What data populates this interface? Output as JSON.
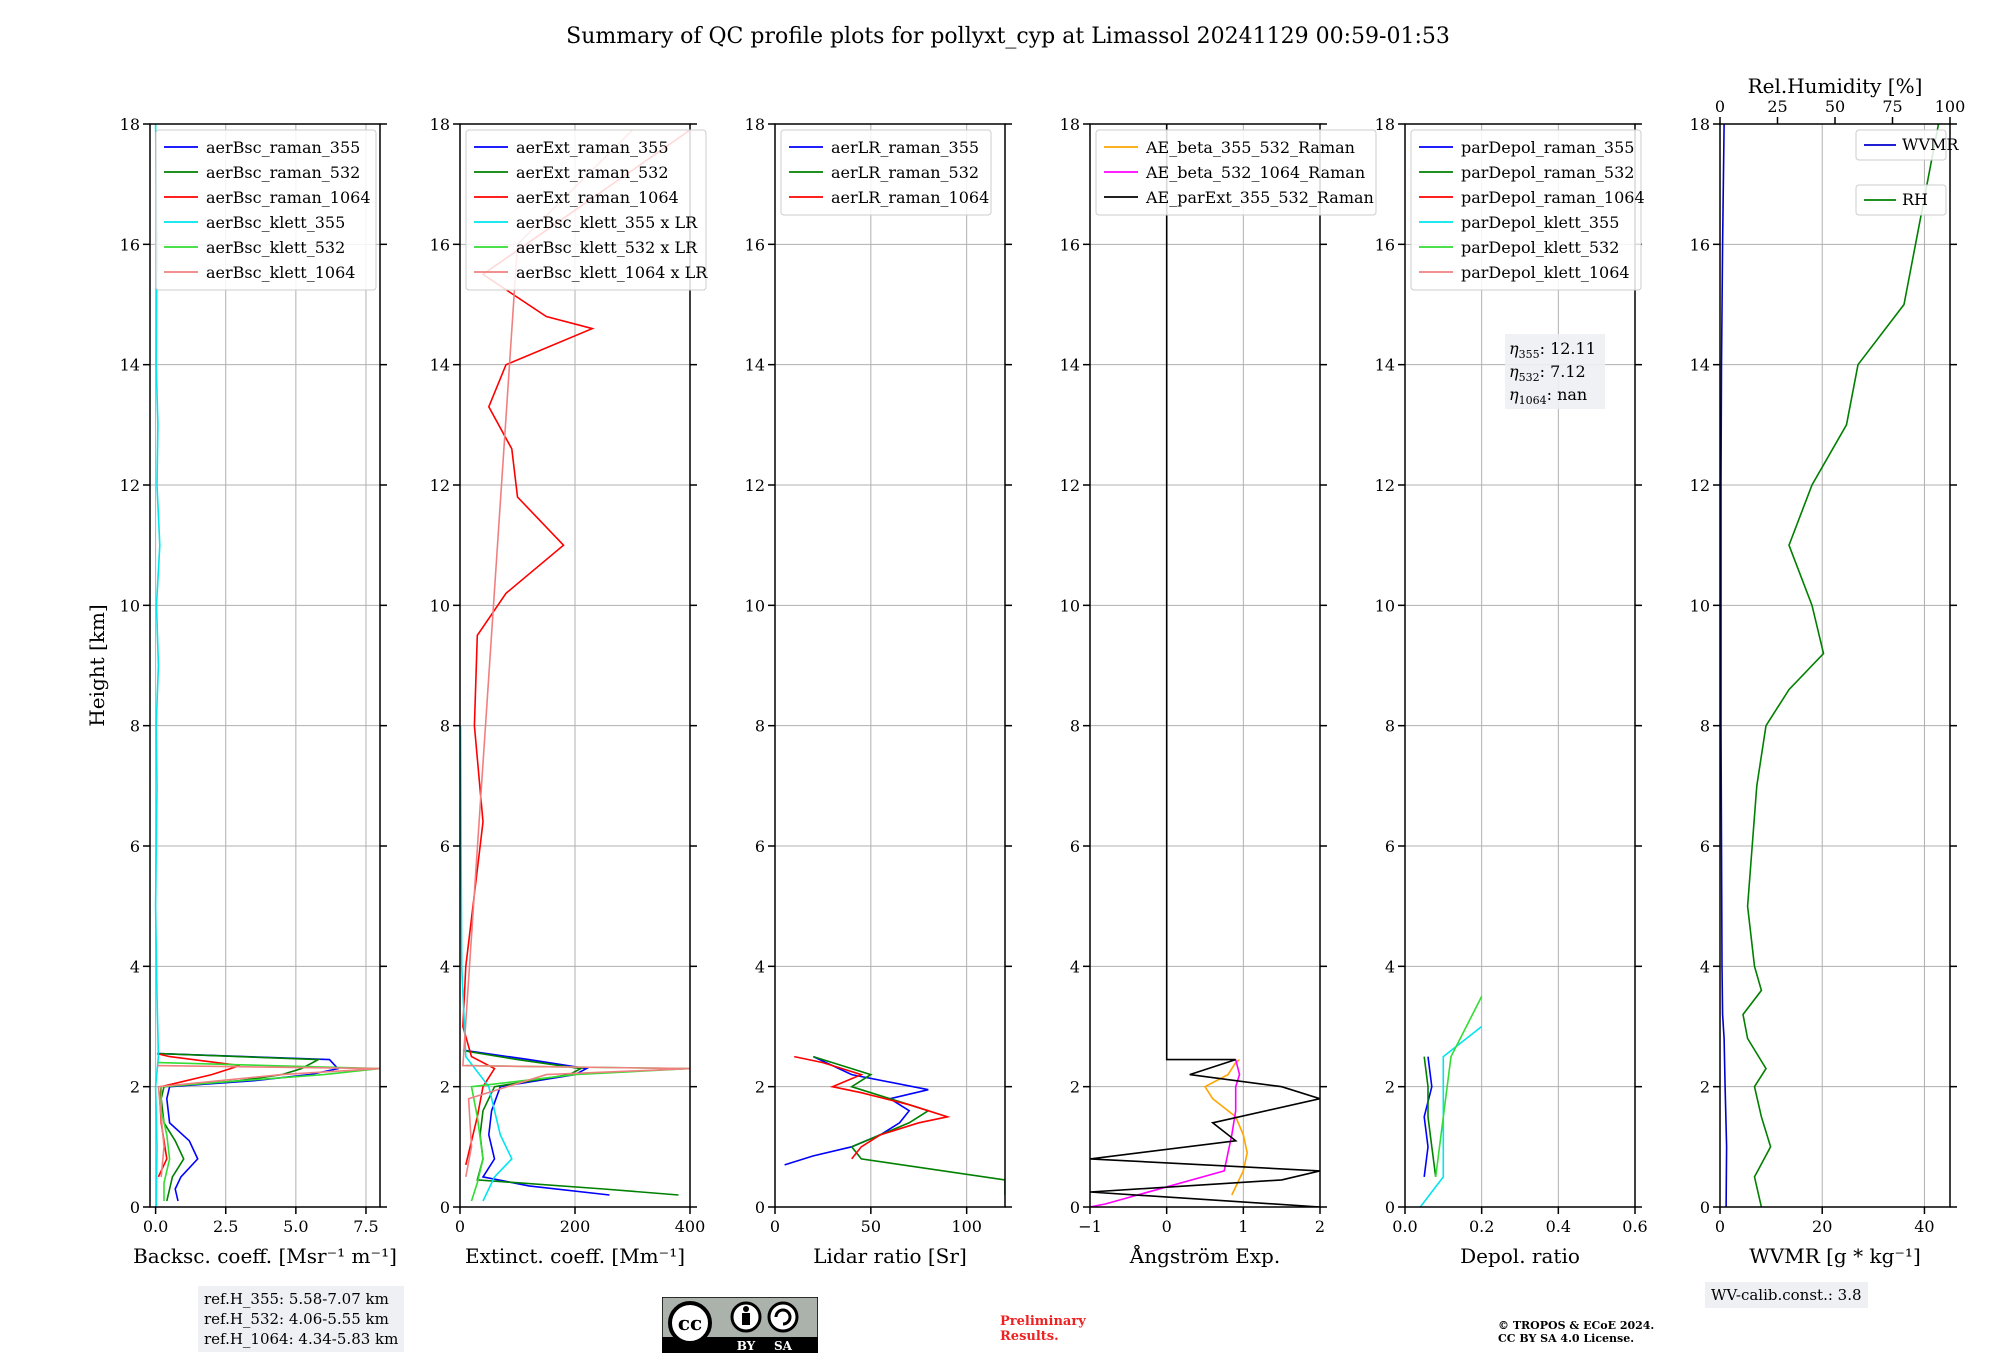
{
  "title": "Summary of QC profile plots for pollyxt_cyp at Limassol 20241129 00:59-01:53",
  "chart_data": [
    {
      "type": "line",
      "xlabel": "Backsc. coeff. [Msr⁻¹ m⁻¹]",
      "ylabel": "Height [km]",
      "xlim": [
        -0.2,
        8
      ],
      "ylim": [
        0,
        18
      ],
      "xticks": [
        0,
        2.5,
        5,
        7.5
      ],
      "xticklabels": [
        "0.0",
        "2.5",
        "5.0",
        "7.5"
      ],
      "yticks": [
        0,
        2,
        4,
        6,
        8,
        10,
        12,
        14,
        16,
        18
      ],
      "grid": true,
      "legend": "top",
      "series": [
        {
          "name": "aerBsc_raman_355",
          "color": "#0000ff",
          "y": [
            0.1,
            0.3,
            0.5,
            0.8,
            1.1,
            1.4,
            1.8,
            2.0,
            2.1,
            2.2,
            2.3,
            2.45,
            2.55
          ],
          "x": [
            0.8,
            0.7,
            0.9,
            1.5,
            1.2,
            0.5,
            0.4,
            0.5,
            3.5,
            5.5,
            6.5,
            6.2,
            0.1
          ]
        },
        {
          "name": "aerBsc_raman_532",
          "color": "#008000",
          "y": [
            0.1,
            0.3,
            0.5,
            0.8,
            1.1,
            1.4,
            1.8,
            2.0,
            2.1,
            2.2,
            2.3,
            2.45,
            2.55
          ],
          "x": [
            0.4,
            0.5,
            0.6,
            1.0,
            0.7,
            0.3,
            0.2,
            0.3,
            3.0,
            4.5,
            5.2,
            5.8,
            0.1
          ]
        },
        {
          "name": "aerBsc_raman_1064",
          "color": "#ff0000",
          "y": [
            0.5,
            0.8,
            1.1,
            1.4,
            1.8,
            2.0,
            2.2,
            2.35,
            2.5,
            2.55
          ],
          "x": [
            0.1,
            0.4,
            0.3,
            0.2,
            0.15,
            0.2,
            2.0,
            3.0,
            0.5,
            0.05
          ]
        },
        {
          "name": "aerBsc_klett_355",
          "color": "#00e5ee",
          "y": [
            0,
            1,
            2,
            2.5,
            3.5,
            5,
            7,
            8,
            9,
            10,
            11,
            12,
            13,
            14,
            16,
            18
          ],
          "x": [
            0.02,
            0.05,
            0.0,
            0.1,
            0.05,
            0.0,
            0.05,
            0.02,
            0.1,
            0.03,
            0.15,
            0.05,
            0.08,
            0.02,
            0.05,
            0.0
          ]
        },
        {
          "name": "aerBsc_klett_532",
          "color": "#33dd33",
          "y": [
            0.1,
            0.4,
            0.8,
            1.2,
            1.6,
            2.0,
            2.2,
            2.3,
            2.4
          ],
          "x": [
            0.3,
            0.3,
            0.5,
            0.4,
            0.2,
            0.2,
            6.0,
            8.0,
            0.1
          ]
        },
        {
          "name": "aerBsc_klett_1064",
          "color": "#f08080",
          "y": [
            0.5,
            1.0,
            1.5,
            2.0,
            2.2,
            2.3,
            2.35
          ],
          "x": [
            0.2,
            0.3,
            0.2,
            0.1,
            4.5,
            8.0,
            0.05
          ]
        }
      ],
      "info": [
        "ref.H_355: 5.58-7.07 km",
        "ref.H_532: 4.06-5.55 km",
        "ref.H_1064: 4.34-5.83 km"
      ]
    },
    {
      "type": "line",
      "xlabel": "Extinct. coeff. [Mm⁻¹]",
      "xlim": [
        0,
        400
      ],
      "ylim": [
        0,
        18
      ],
      "xticks": [
        0,
        200,
        400
      ],
      "xticklabels": [
        "0",
        "200",
        "400"
      ],
      "yticks": [
        0,
        2,
        4,
        6,
        8,
        10,
        12,
        14,
        16,
        18
      ],
      "grid": true,
      "legend": "top",
      "series": [
        {
          "name": "aerExt_raman_355",
          "color": "#0000ff",
          "y": [
            0.2,
            0.35,
            0.5,
            0.8,
            1.2,
            1.6,
            2.0,
            2.2,
            2.3,
            2.45,
            2.6
          ],
          "x": [
            260,
            120,
            40,
            60,
            50,
            55,
            70,
            200,
            220,
            120,
            10
          ]
        },
        {
          "name": "aerExt_raman_532",
          "color": "#008000",
          "y": [
            0.2,
            0.3,
            0.45,
            0.8,
            1.2,
            1.6,
            2.0,
            2.2,
            2.3,
            2.45,
            2.6
          ],
          "x": [
            380,
            250,
            30,
            40,
            35,
            40,
            60,
            190,
            210,
            100,
            5
          ]
        },
        {
          "name": "aerExt_raman_1064",
          "color": "#ff0000",
          "y": [
            0.7,
            1.5,
            2.0,
            2.3,
            2.5,
            3.0,
            4.0,
            6.4,
            8.0,
            9.5,
            10.2,
            11.0,
            11.8,
            12.6,
            13.3,
            14.0,
            14.6,
            14.8,
            15.5,
            17.9
          ],
          "x": [
            10,
            30,
            40,
            60,
            20,
            5,
            10,
            40,
            25,
            30,
            80,
            180,
            100,
            90,
            50,
            80,
            230,
            150,
            40,
            400
          ]
        },
        {
          "name": "aerBsc_klett_355 x LR",
          "color": "#00e5ee",
          "y": [
            0.1,
            0.5,
            0.8,
            1.2,
            2.0,
            2.5,
            4,
            6,
            8
          ],
          "x": [
            40,
            60,
            90,
            70,
            50,
            10,
            3,
            2,
            1
          ]
        },
        {
          "name": "aerBsc_klett_532 x LR",
          "color": "#33dd33",
          "y": [
            0.1,
            0.4,
            0.8,
            1.5,
            2.0,
            2.2,
            2.3,
            2.35
          ],
          "x": [
            20,
            30,
            40,
            30,
            20,
            200,
            400,
            10
          ]
        },
        {
          "name": "aerBsc_klett_1064 x LR",
          "color": "#f08080",
          "y": [
            0.5,
            1.0,
            1.8,
            2.2,
            2.3,
            2.35,
            16.0,
            17.9
          ],
          "x": [
            10,
            20,
            15,
            150,
            400,
            5,
            100,
            300
          ]
        }
      ]
    },
    {
      "type": "line",
      "xlabel": "Lidar ratio [Sr]",
      "xlim": [
        0,
        120
      ],
      "ylim": [
        0,
        18
      ],
      "xticks": [
        0,
        50,
        100
      ],
      "xticklabels": [
        "0",
        "50",
        "100"
      ],
      "yticks": [
        0,
        2,
        4,
        6,
        8,
        10,
        12,
        14,
        16,
        18
      ],
      "grid": true,
      "legend": "top",
      "series": [
        {
          "name": "aerLR_raman_355",
          "color": "#0000ff",
          "y": [
            0.7,
            0.85,
            1.0,
            1.2,
            1.4,
            1.6,
            1.8,
            1.95,
            2.2,
            2.5
          ],
          "x": [
            5,
            20,
            40,
            55,
            65,
            70,
            60,
            80,
            40,
            20
          ]
        },
        {
          "name": "aerLR_raman_532",
          "color": "#008000",
          "y": [
            0.2,
            0.45,
            0.8,
            1.0,
            1.2,
            1.4,
            1.6,
            1.8,
            2.0,
            2.2,
            2.5
          ],
          "x": [
            120,
            120,
            45,
            40,
            55,
            70,
            80,
            60,
            40,
            50,
            20
          ]
        },
        {
          "name": "aerLR_raman_1064",
          "color": "#ff0000",
          "y": [
            0.8,
            1.0,
            1.2,
            1.4,
            1.5,
            1.7,
            1.9,
            2.0,
            2.2,
            2.4,
            2.5
          ],
          "x": [
            40,
            45,
            55,
            75,
            90,
            70,
            45,
            30,
            45,
            25,
            10
          ]
        }
      ]
    },
    {
      "type": "line",
      "xlabel": "Ångström Exp.",
      "xlim": [
        -1,
        2
      ],
      "ylim": [
        0,
        18
      ],
      "xticks": [
        -1,
        0,
        1,
        2
      ],
      "xticklabels": [
        "−1",
        "0",
        "1",
        "2"
      ],
      "yticks": [
        0,
        2,
        4,
        6,
        8,
        10,
        12,
        14,
        16,
        18
      ],
      "grid": true,
      "legend": "top",
      "series": [
        {
          "name": "AE_beta_355_532_Raman",
          "color": "#ffa500",
          "y": [
            0.2,
            0.6,
            0.9,
            1.2,
            1.5,
            1.8,
            2.0,
            2.2,
            2.4,
            2.45
          ],
          "x": [
            0.85,
            1.0,
            1.05,
            1.0,
            0.9,
            0.6,
            0.5,
            0.8,
            0.9,
            0.95
          ]
        },
        {
          "name": "AE_beta_532_1064_Raman",
          "color": "#ff00ff",
          "y": [
            0,
            0.05,
            0.6,
            0.9,
            1.2,
            1.6,
            2.0,
            2.2,
            2.45
          ],
          "x": [
            -1.0,
            -0.8,
            0.75,
            0.8,
            0.85,
            0.9,
            0.9,
            0.95,
            0.9
          ]
        },
        {
          "name": "AE_parExt_355_532_Raman",
          "color": "#000000",
          "y": [
            0,
            0.25,
            0.45,
            0.6,
            0.8,
            1.1,
            1.4,
            1.8,
            2.0,
            2.2,
            2.45,
            2.45,
            18
          ],
          "x": [
            2.0,
            -1.0,
            1.5,
            2.0,
            -1.0,
            0.9,
            0.6,
            2.0,
            1.5,
            0.3,
            0.9,
            0.0,
            0.0
          ]
        }
      ]
    },
    {
      "type": "line",
      "xlabel": "Depol. ratio",
      "xlim": [
        0,
        0.6
      ],
      "ylim": [
        0,
        18
      ],
      "xticks": [
        0,
        0.2,
        0.4,
        0.6
      ],
      "xticklabels": [
        "0.0",
        "0.2",
        "0.4",
        "0.6"
      ],
      "yticks": [
        0,
        2,
        4,
        6,
        8,
        10,
        12,
        14,
        16,
        18
      ],
      "grid": true,
      "legend": "top",
      "series": [
        {
          "name": "parDepol_raman_355",
          "color": "#0000ff",
          "y": [
            0.5,
            1.0,
            1.5,
            2.0,
            2.5
          ],
          "x": [
            0.05,
            0.06,
            0.05,
            0.07,
            0.06
          ]
        },
        {
          "name": "parDepol_raman_532",
          "color": "#008000",
          "y": [
            0.5,
            1.0,
            1.5,
            2.0,
            2.5
          ],
          "x": [
            0.08,
            0.07,
            0.06,
            0.06,
            0.05
          ]
        },
        {
          "name": "parDepol_raman_1064",
          "color": "#ff0000",
          "y": [],
          "x": []
        },
        {
          "name": "parDepol_klett_355",
          "color": "#00e5ee",
          "y": [
            0.0,
            0.5,
            1.5,
            2.5,
            3.0
          ],
          "x": [
            0.04,
            0.1,
            0.1,
            0.1,
            0.2
          ]
        },
        {
          "name": "parDepol_klett_532",
          "color": "#33dd33",
          "y": [
            0.5,
            1.5,
            2.5,
            3.5
          ],
          "x": [
            0.08,
            0.1,
            0.12,
            0.2
          ]
        },
        {
          "name": "parDepol_klett_1064",
          "color": "#f08080",
          "y": [],
          "x": []
        }
      ],
      "annotations": [
        {
          "label": "η",
          "sub": "355",
          "value": ": 12.11"
        },
        {
          "label": "η",
          "sub": "532",
          "value": ": 7.12"
        },
        {
          "label": "η",
          "sub": "1064",
          "value": ": nan"
        }
      ]
    },
    {
      "type": "line",
      "xlabel": "WVMR [g * kg⁻¹]",
      "xlabel_top": "Rel.Humidity [%]",
      "xlim": [
        0,
        45
      ],
      "xlim_top": [
        0,
        100
      ],
      "ylim": [
        0,
        18
      ],
      "xticks": [
        0,
        20,
        40
      ],
      "xticklabels": [
        "0",
        "20",
        "40"
      ],
      "xticks_top": [
        0,
        25,
        50,
        75,
        100
      ],
      "xticklabels_top": [
        "0",
        "25",
        "50",
        "75",
        "100"
      ],
      "yticks": [
        0,
        2,
        4,
        6,
        8,
        10,
        12,
        14,
        16,
        18
      ],
      "grid": true,
      "series": [
        {
          "name": "WVMR",
          "color": "#0000cc",
          "axis": "bottom",
          "y": [
            0,
            1.0,
            2.0,
            2.8,
            3.2,
            4.0,
            6.0,
            8.0,
            10.0,
            12.0,
            14.0,
            16.0,
            18.0
          ],
          "x": [
            1.2,
            1.3,
            1.0,
            0.8,
            0.5,
            0.4,
            0.3,
            0.2,
            0.2,
            0.2,
            0.3,
            0.5,
            0.8
          ]
        },
        {
          "name": "RH",
          "color": "#008000",
          "axis": "top",
          "y": [
            0,
            0.5,
            1.0,
            1.5,
            2.0,
            2.3,
            2.8,
            3.2,
            3.6,
            4.0,
            5.0,
            6.0,
            7.0,
            8.0,
            8.6,
            9.2,
            10.0,
            11.0,
            12.0,
            13.0,
            14.0,
            15.0,
            16.0,
            17.0,
            18.0
          ],
          "x": [
            18,
            15,
            22,
            18,
            15,
            20,
            12,
            10,
            18,
            15,
            12,
            14,
            16,
            20,
            30,
            45,
            40,
            30,
            40,
            55,
            60,
            80,
            85,
            90,
            95
          ]
        }
      ],
      "info": [
        "WV-calib.const.: 3.8"
      ]
    }
  ],
  "footer": {
    "cc_badge": [
      "cc",
      "BY",
      "SA"
    ],
    "preliminary": [
      "Preliminary",
      "Results."
    ],
    "copyright": [
      "© TROPOS & ECoE 2024.",
      "CC BY SA 4.0 License."
    ]
  }
}
